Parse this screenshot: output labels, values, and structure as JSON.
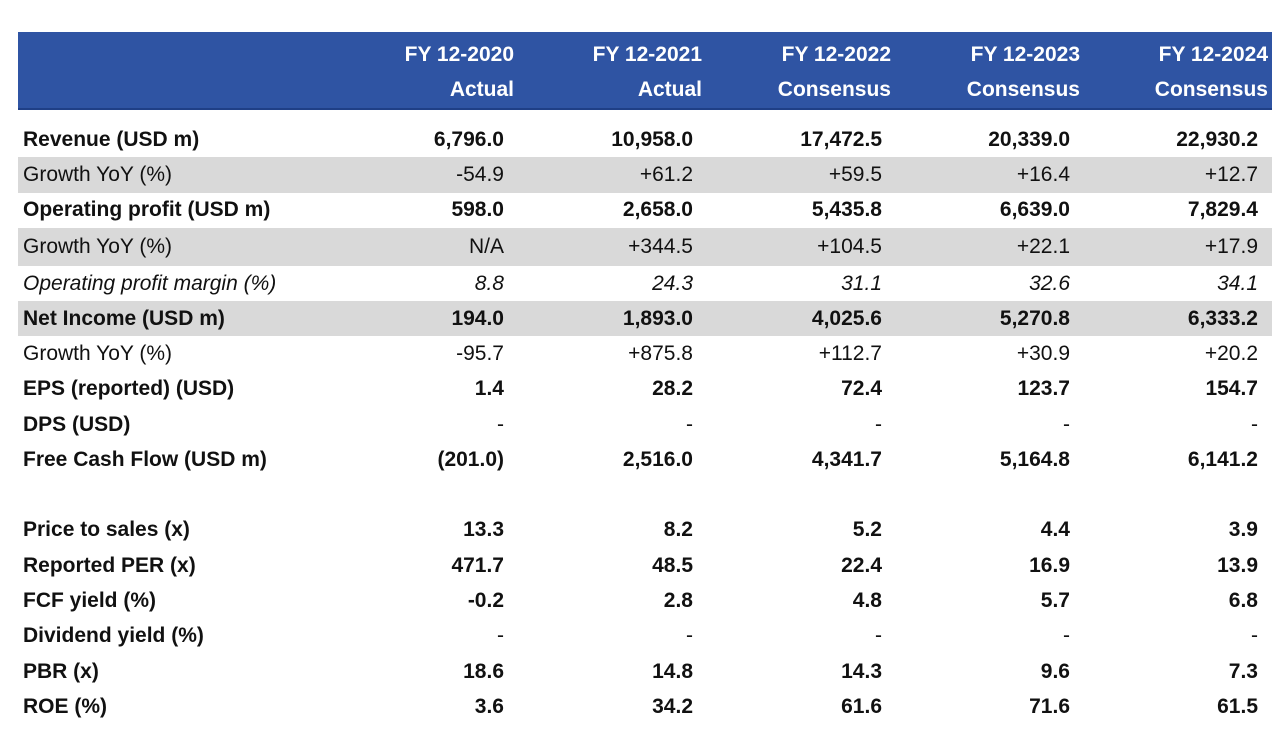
{
  "colors": {
    "header_bg": "#2f54a3",
    "header_text": "#ffffff",
    "shade_bg": "#d9d9d9"
  },
  "columns": [
    {
      "line1": "FY 12-2020",
      "line2": "Actual"
    },
    {
      "line1": "FY 12-2021",
      "line2": "Actual"
    },
    {
      "line1": "FY 12-2022",
      "line2": "Consensus"
    },
    {
      "line1": "FY 12-2023",
      "line2": "Consensus"
    },
    {
      "line1": "FY 12-2024",
      "line2": "Consensus"
    }
  ],
  "rows": [
    {
      "label": "Revenue (USD m)",
      "values": [
        "6,796.0",
        "10,958.0",
        "17,472.5",
        "20,339.0",
        "22,930.2"
      ]
    },
    {
      "label": "Growth YoY (%)",
      "values": [
        "-54.9",
        "+61.2",
        "+59.5",
        "+16.4",
        "+12.7"
      ]
    },
    {
      "label": "Operating profit (USD m)",
      "values": [
        "598.0",
        "2,658.0",
        "5,435.8",
        "6,639.0",
        "7,829.4"
      ]
    },
    {
      "label": "Growth YoY (%)",
      "values": [
        "N/A",
        "+344.5",
        "+104.5",
        "+22.1",
        "+17.9"
      ]
    },
    {
      "label": "Operating profit margin (%)",
      "values": [
        "8.8",
        "24.3",
        "31.1",
        "32.6",
        "34.1"
      ]
    },
    {
      "label": "Net Income (USD m)",
      "values": [
        "194.0",
        "1,893.0",
        "4,025.6",
        "5,270.8",
        "6,333.2"
      ]
    },
    {
      "label": "Growth YoY (%)",
      "values": [
        "-95.7",
        "+875.8",
        "+112.7",
        "+30.9",
        "+20.2"
      ]
    },
    {
      "label": "EPS (reported) (USD)",
      "values": [
        "1.4",
        "28.2",
        "72.4",
        "123.7",
        "154.7"
      ]
    },
    {
      "label": "DPS (USD)",
      "values": [
        "-",
        "-",
        "-",
        "-",
        "-"
      ]
    },
    {
      "label": "Free Cash Flow (USD m)",
      "values": [
        "(201.0)",
        "2,516.0",
        "4,341.7",
        "5,164.8",
        "6,141.2"
      ]
    },
    {
      "label": "Price to sales (x)",
      "values": [
        "13.3",
        "8.2",
        "5.2",
        "4.4",
        "3.9"
      ]
    },
    {
      "label": "Reported PER (x)",
      "values": [
        "471.7",
        "48.5",
        "22.4",
        "16.9",
        "13.9"
      ]
    },
    {
      "label": "FCF yield (%)",
      "values": [
        "-0.2",
        "2.8",
        "4.8",
        "5.7",
        "6.8"
      ]
    },
    {
      "label": "Dividend yield (%)",
      "values": [
        "-",
        "-",
        "-",
        "-",
        "-"
      ]
    },
    {
      "label": "PBR (x)",
      "values": [
        "18.6",
        "14.8",
        "14.3",
        "9.6",
        "7.3"
      ]
    },
    {
      "label": "ROE (%)",
      "values": [
        "3.6",
        "34.2",
        "61.6",
        "71.6",
        "61.5"
      ]
    }
  ]
}
